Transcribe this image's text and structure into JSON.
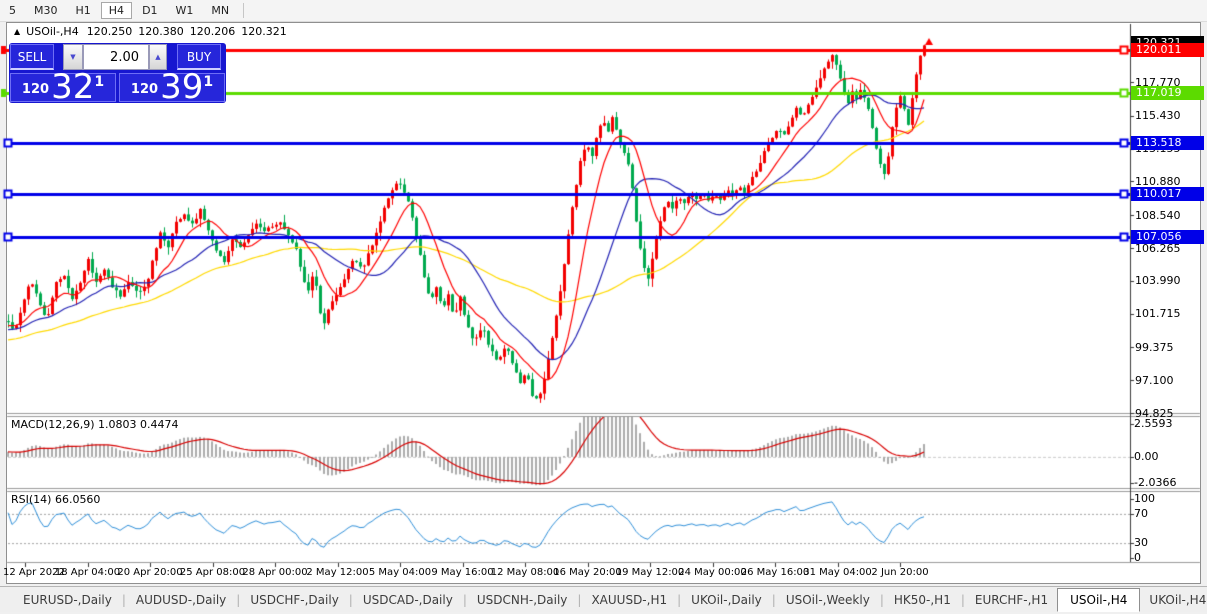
{
  "toolbar": {
    "timeframes": [
      "5",
      "M30",
      "H1",
      "H4",
      "D1",
      "W1",
      "MN"
    ],
    "active_timeframe": "H4"
  },
  "chart_header": {
    "collapse_marker": "▲",
    "symbol": "USOil-,H4",
    "open": "120.250",
    "high": "120.380",
    "low": "120.206",
    "close": "120.321"
  },
  "trade_panel": {
    "sell_label": "SELL",
    "buy_label": "BUY",
    "volume": "2.00",
    "spinner_down_icon": "▼",
    "spinner_up_icon": "▲",
    "sell_price_prefix": "120",
    "sell_price_big": "32",
    "sell_price_sup": "1",
    "buy_price_prefix": "120",
    "buy_price_big": "39",
    "buy_price_sup": "1"
  },
  "price_axis": {
    "ticks": [
      "117.770",
      "115.430",
      "113.155",
      "110.880",
      "108.540",
      "106.265",
      "103.990",
      "101.715",
      "99.375",
      "97.100",
      "94.825"
    ],
    "current_price_label": {
      "text": "120.321",
      "bg": "#000000",
      "fg": "#ffffff"
    },
    "line_labels": [
      {
        "text": "120.011",
        "value": 120.011,
        "bg": "#ff0000",
        "fg": "#ffffff"
      },
      {
        "text": "117.019",
        "value": 117.019,
        "bg": "#5cdb00",
        "fg": "#ffffff"
      },
      {
        "text": "113.518",
        "value": 113.518,
        "bg": "#0000e8",
        "fg": "#ffffff"
      },
      {
        "text": "110.017",
        "value": 110.017,
        "bg": "#0000e8",
        "fg": "#ffffff"
      },
      {
        "text": "107.056",
        "value": 107.056,
        "bg": "#0000e8",
        "fg": "#ffffff"
      }
    ]
  },
  "macd_panel": {
    "label": "MACD(12,26,9) 1.0803 0.4474",
    "scale_labels": [
      "2.5593",
      "0.00",
      "-2.0366"
    ]
  },
  "rsi_panel": {
    "label": "RSI(14) 66.0560",
    "scale_labels": [
      "100",
      "70",
      "30",
      "0"
    ]
  },
  "date_axis": {
    "labels": [
      "12 Apr 2022",
      "18 Apr 04:00",
      "20 Apr 20:00",
      "25 Apr 08:00",
      "28 Apr 00:00",
      "2 May 12:00",
      "5 May 04:00",
      "9 May 16:00",
      "12 May 08:00",
      "16 May 20:00",
      "19 May 12:00",
      "24 May 00:00",
      "26 May 16:00",
      "31 May 04:00",
      "2 Jun 20:00"
    ]
  },
  "tab_bar": {
    "tabs": [
      "EURUSD-,Daily",
      "AUDUSD-,Daily",
      "USDCHF-,Daily",
      "USDCAD-,Daily",
      "USDCNH-,Daily",
      "XAUUSD-,H1",
      "UKOil-,Daily",
      "USOil-,Weekly",
      "HK50-,H1",
      "EURCHF-,H1",
      "USOil-,H4",
      "UKOil-,H4"
    ],
    "active_tab": "USOil-,H4",
    "separator": "|",
    "scroll_left_icon": "◄",
    "scroll_right_icon": "►"
  },
  "chart_data": {
    "type": "candlestick",
    "symbol": "USOil-",
    "timeframe": "H4",
    "current_ohlc": {
      "open": 120.25,
      "high": 120.38,
      "low": 120.206,
      "close": 120.321
    },
    "ylim": [
      94.825,
      121.8
    ],
    "price_ticks": [
      117.77,
      115.43,
      113.155,
      110.88,
      108.54,
      106.265,
      103.99,
      101.715,
      99.375,
      97.1,
      94.825
    ],
    "x_ticks": [
      "12 Apr 2022",
      "18 Apr 04:00",
      "20 Apr 20:00",
      "25 Apr 08:00",
      "28 Apr 00:00",
      "2 May 12:00",
      "5 May 04:00",
      "9 May 16:00",
      "12 May 08:00",
      "16 May 20:00",
      "19 May 12:00",
      "24 May 00:00",
      "26 May 16:00",
      "31 May 04:00",
      "2 Jun 20:00"
    ],
    "candle_colors": {
      "up": "#f20000",
      "down": "#00a94e"
    },
    "horizontal_lines": [
      {
        "price": 120.011,
        "color": "#ff0000"
      },
      {
        "price": 117.019,
        "color": "#5cdb00"
      },
      {
        "price": 113.518,
        "color": "#0000e8"
      },
      {
        "price": 110.017,
        "color": "#0000e8"
      },
      {
        "price": 107.056,
        "color": "#0000e8"
      }
    ],
    "moving_averages": [
      {
        "period": 10,
        "color": "#ff0000"
      },
      {
        "period": 22,
        "color": "#2323b4"
      },
      {
        "period": 50,
        "color": "#ffd900"
      }
    ],
    "indicators": [
      {
        "name": "MACD",
        "params": [
          12,
          26,
          9
        ],
        "values": [
          1.0803,
          0.4474
        ],
        "range": [
          -2.0366,
          2.5593
        ],
        "histogram_color": "#ababab",
        "signal_color": "#d80000",
        "zero_line": 0
      },
      {
        "name": "RSI",
        "params": [
          14
        ],
        "value": 66.056,
        "range": [
          0,
          100
        ],
        "levels": [
          30,
          70
        ],
        "color": "#2f8fd8"
      }
    ],
    "close_path_anchors": [
      [
        8,
        101.2
      ],
      [
        14,
        100.4
      ],
      [
        22,
        102.2
      ],
      [
        30,
        104.2
      ],
      [
        38,
        102.8
      ],
      [
        46,
        101.2
      ],
      [
        56,
        103.8
      ],
      [
        64,
        104.3
      ],
      [
        72,
        102.8
      ],
      [
        80,
        103.8
      ],
      [
        88,
        105.4
      ],
      [
        96,
        103.9
      ],
      [
        104,
        104.8
      ],
      [
        112,
        103.5
      ],
      [
        120,
        103.0
      ],
      [
        128,
        103.9
      ],
      [
        136,
        103.2
      ],
      [
        146,
        103.6
      ],
      [
        152,
        105.4
      ],
      [
        160,
        107.3
      ],
      [
        168,
        106.3
      ],
      [
        176,
        108.1
      ],
      [
        184,
        108.6
      ],
      [
        192,
        107.9
      ],
      [
        200,
        108.9
      ],
      [
        208,
        107.6
      ],
      [
        216,
        106.0
      ],
      [
        224,
        105.3
      ],
      [
        232,
        106.9
      ],
      [
        240,
        106.3
      ],
      [
        248,
        107.1
      ],
      [
        256,
        107.9
      ],
      [
        264,
        107.4
      ],
      [
        272,
        107.8
      ],
      [
        280,
        108.1
      ],
      [
        288,
        107.1
      ],
      [
        296,
        106.3
      ],
      [
        302,
        104.2
      ],
      [
        308,
        103.4
      ],
      [
        314,
        104.6
      ],
      [
        322,
        100.7
      ],
      [
        330,
        102.4
      ],
      [
        338,
        103.3
      ],
      [
        346,
        104.5
      ],
      [
        354,
        105.6
      ],
      [
        362,
        104.7
      ],
      [
        370,
        106.2
      ],
      [
        378,
        107.6
      ],
      [
        384,
        109.0
      ],
      [
        392,
        110.3
      ],
      [
        398,
        110.9
      ],
      [
        404,
        110.2
      ],
      [
        410,
        109.0
      ],
      [
        418,
        106.5
      ],
      [
        424,
        104.3
      ],
      [
        430,
        102.4
      ],
      [
        436,
        103.5
      ],
      [
        442,
        102.0
      ],
      [
        448,
        103.0
      ],
      [
        454,
        101.4
      ],
      [
        460,
        102.8
      ],
      [
        466,
        101.0
      ],
      [
        474,
        99.8
      ],
      [
        482,
        100.9
      ],
      [
        490,
        99.2
      ],
      [
        498,
        98.4
      ],
      [
        506,
        99.5
      ],
      [
        514,
        98.0
      ],
      [
        520,
        96.9
      ],
      [
        526,
        97.6
      ],
      [
        532,
        96.1
      ],
      [
        538,
        95.7
      ],
      [
        544,
        97.2
      ],
      [
        550,
        99.2
      ],
      [
        556,
        101.6
      ],
      [
        562,
        104.2
      ],
      [
        568,
        107.2
      ],
      [
        574,
        110.0
      ],
      [
        580,
        112.2
      ],
      [
        586,
        113.6
      ],
      [
        592,
        112.6
      ],
      [
        596,
        114.0
      ],
      [
        602,
        115.1
      ],
      [
        608,
        114.3
      ],
      [
        612,
        115.4
      ],
      [
        618,
        113.9
      ],
      [
        624,
        112.9
      ],
      [
        630,
        111.6
      ],
      [
        636,
        108.2
      ],
      [
        642,
        105.2
      ],
      [
        648,
        104.2
      ],
      [
        654,
        106.2
      ],
      [
        660,
        108.2
      ],
      [
        666,
        109.6
      ],
      [
        672,
        108.9
      ],
      [
        678,
        109.9
      ],
      [
        684,
        109.3
      ],
      [
        690,
        110.2
      ],
      [
        696,
        109.7
      ],
      [
        702,
        110.1
      ],
      [
        708,
        109.5
      ],
      [
        714,
        110.1
      ],
      [
        720,
        109.7
      ],
      [
        726,
        110.3
      ],
      [
        732,
        109.9
      ],
      [
        738,
        110.5
      ],
      [
        744,
        110.2
      ],
      [
        750,
        110.9
      ],
      [
        756,
        111.6
      ],
      [
        762,
        112.6
      ],
      [
        768,
        113.5
      ],
      [
        774,
        114.1
      ],
      [
        778,
        114.5
      ],
      [
        784,
        114.1
      ],
      [
        790,
        115.1
      ],
      [
        796,
        115.9
      ],
      [
        802,
        115.3
      ],
      [
        808,
        116.3
      ],
      [
        814,
        117.1
      ],
      [
        820,
        118.1
      ],
      [
        826,
        119.1
      ],
      [
        832,
        119.6
      ],
      [
        836,
        118.9
      ],
      [
        840,
        118.1
      ],
      [
        844,
        117.1
      ],
      [
        848,
        116.3
      ],
      [
        852,
        117.1
      ],
      [
        856,
        116.5
      ],
      [
        860,
        117.3
      ],
      [
        864,
        116.7
      ],
      [
        868,
        115.9
      ],
      [
        872,
        114.6
      ],
      [
        876,
        113.1
      ],
      [
        880,
        112.1
      ],
      [
        884,
        111.3
      ],
      [
        888,
        112.6
      ],
      [
        892,
        114.6
      ],
      [
        896,
        116.1
      ],
      [
        900,
        116.9
      ],
      [
        904,
        115.9
      ],
      [
        908,
        114.9
      ],
      [
        912,
        116.6
      ],
      [
        916,
        118.3
      ],
      [
        920,
        119.6
      ],
      [
        924,
        120.32
      ]
    ]
  }
}
